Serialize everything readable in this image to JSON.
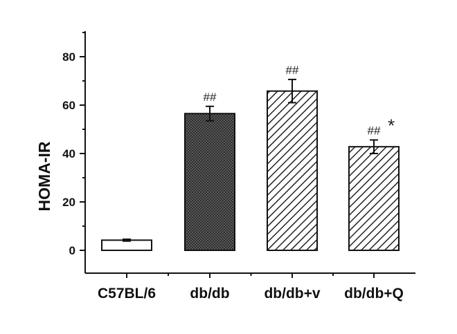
{
  "chart_data": {
    "type": "bar",
    "title": "",
    "xlabel": "",
    "ylabel": "HOMA-IR",
    "ylim": [
      -10,
      90
    ],
    "yticks": [
      0,
      20,
      40,
      60,
      80
    ],
    "categories": [
      "C57BL/6",
      "db/db",
      "db/db+v",
      "db/db+Q"
    ],
    "values": [
      4.2,
      56.5,
      65.8,
      42.8
    ],
    "errors": [
      0.4,
      3.0,
      4.8,
      2.8
    ],
    "patterns": [
      "none",
      "dense-crosshatch",
      "diagonal",
      "diagonal"
    ],
    "annotations": [
      "",
      "##",
      "##",
      "##*"
    ],
    "grid": false,
    "legend": "none"
  }
}
